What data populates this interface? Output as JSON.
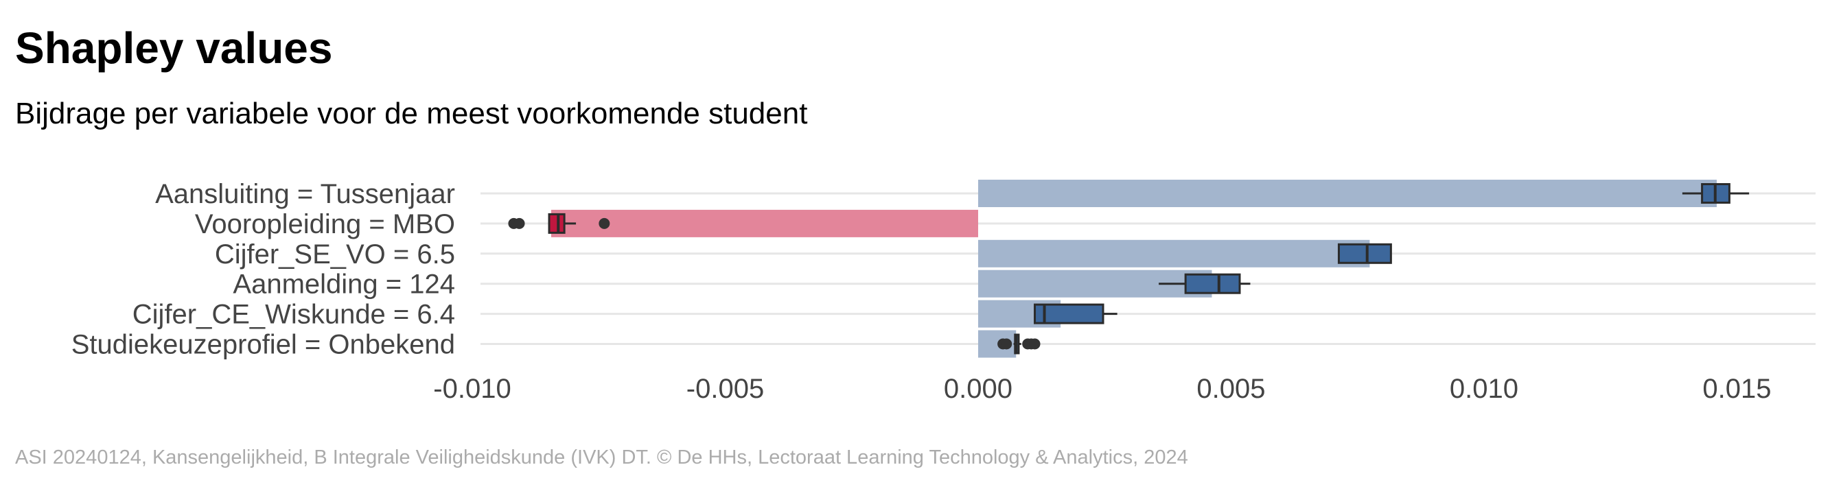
{
  "chart_data": {
    "type": "bar",
    "orientation": "horizontal",
    "title": "Shapley values",
    "subtitle": "Bijdrage per variabele voor de meest voorkomende student",
    "caption": "ASI 20240124, Kansengelijkheid, B Integrale Veiligheidskunde (IVK) DT. © De HHs, Lectoraat Learning Technology & Analytics, 2024",
    "categories": [
      "Aansluiting = Tussenjaar",
      "Vooropleiding = MBO",
      "Cijfer_SE_VO = 6.5",
      "Aanmelding = 124",
      "Cijfer_CE_Wiskunde = 6.4",
      "Studiekeuzeprofiel = Onbekend"
    ],
    "values": [
      0.0146,
      -0.00844,
      0.00774,
      0.00462,
      0.00163,
      0.00075
    ],
    "colors": [
      "#a3b5cd",
      "#e3859a",
      "#a3b5cd",
      "#a3b5cd",
      "#a3b5cd",
      "#a3b5cd"
    ],
    "boxplots": [
      {
        "min": 0.01392,
        "q1": 0.01431,
        "median": 0.01457,
        "q3": 0.01485,
        "max": 0.01524,
        "outliers": []
      },
      {
        "min": -0.00848,
        "q1": -0.00848,
        "median": -0.0083,
        "q3": -0.00818,
        "max": -0.00795,
        "outliers": [
          -0.00918,
          -0.00907,
          -0.00739
        ]
      },
      {
        "min": 0.00713,
        "q1": 0.00713,
        "median": 0.00769,
        "q3": 0.00816,
        "max": 0.00816,
        "outliers": []
      },
      {
        "min": 0.00357,
        "q1": 0.0041,
        "median": 0.00476,
        "q3": 0.00517,
        "max": 0.00538,
        "outliers": []
      },
      {
        "min": 0.00112,
        "q1": 0.00112,
        "median": 0.00131,
        "q3": 0.00247,
        "max": 0.00275,
        "outliers": []
      },
      {
        "min": 0.0007,
        "q1": 0.00073,
        "median": 0.00075,
        "q3": 0.0008,
        "max": 0.00085,
        "outliers": [
          0.00049,
          0.00056,
          0.00098,
          0.00105,
          0.00112
        ]
      }
    ],
    "box_colors": [
      "#3d679b",
      "#c0173f",
      "#3d679b",
      "#3d679b",
      "#3d679b",
      "#3d679b"
    ],
    "xlim": [
      -0.01,
      0.0165
    ],
    "xticks": [
      {
        "value": -0.01,
        "label": "-0.010"
      },
      {
        "value": -0.005,
        "label": "-0.005"
      },
      {
        "value": 0,
        "label": "0.000"
      },
      {
        "value": 0.005,
        "label": "0.005"
      },
      {
        "value": 0.01,
        "label": "0.010"
      },
      {
        "value": 0.015,
        "label": "0.015"
      }
    ],
    "grid": true
  }
}
